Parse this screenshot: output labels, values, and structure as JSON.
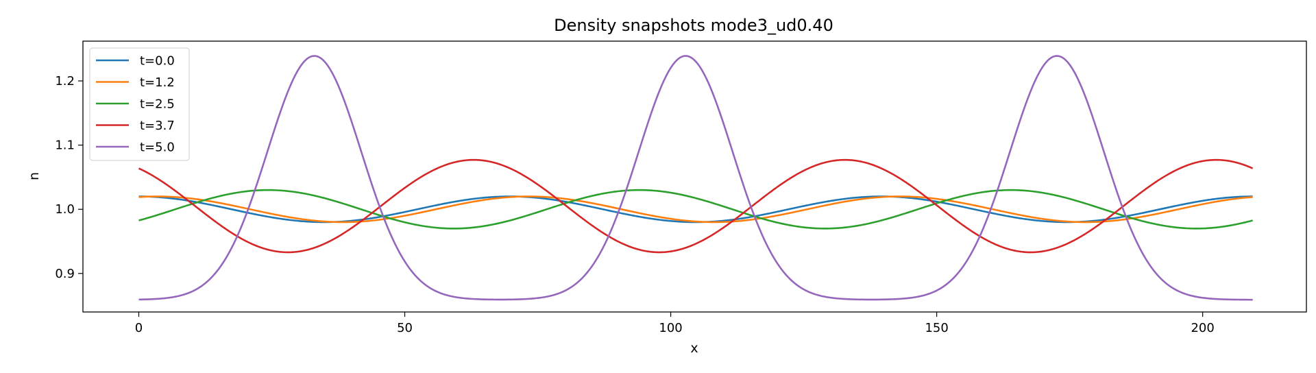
{
  "chart_data": {
    "type": "line",
    "title": "Density snapshots  mode3_ud0.40",
    "xlabel": "x",
    "ylabel": "n",
    "xlim": [
      -10.5,
      219.5
    ],
    "ylim": [
      0.84,
      1.262
    ],
    "xticks": [
      0,
      50,
      100,
      150,
      200
    ],
    "xtick_labels": [
      "0",
      "50",
      "100",
      "150",
      "200"
    ],
    "yticks": [
      0.9,
      1.0,
      1.1,
      1.2
    ],
    "ytick_labels": [
      "0.9",
      "1.0",
      "1.1",
      "1.2"
    ],
    "grid": false,
    "legend_position": "top-left",
    "x_range": [
      0,
      209.4
    ],
    "series": [
      {
        "name": "t=0.0",
        "color": "#1f77b4",
        "shape": "sine",
        "phase": 1.5708,
        "amplitude": 0.02,
        "mean": 1.0,
        "peak_width": 0
      },
      {
        "name": "t=1.2",
        "color": "#ff7f0e",
        "shape": "sine",
        "phase": 1.2566,
        "amplitude": 0.02,
        "mean": 1.0,
        "peak_width": 0
      },
      {
        "name": "t=2.5",
        "color": "#2ca02c",
        "shape": "sine",
        "phase": -0.6178,
        "amplitude": 0.03,
        "mean": 1.0,
        "peak_width": 0
      },
      {
        "name": "t=3.7",
        "color": "#d62728",
        "shape": "sine",
        "phase": 2.1875,
        "amplitude": 0.072,
        "mean": 1.005,
        "peak_width": 0
      },
      {
        "name": "t=5.0",
        "color": "#9467bd",
        "shape": "peak",
        "phase": 0,
        "amplitude": 0.38,
        "mean": 0.859,
        "peak_width": 12.5
      }
    ],
    "period": 69.8,
    "peak_centers": [
      33,
      102.8,
      172.6
    ]
  }
}
